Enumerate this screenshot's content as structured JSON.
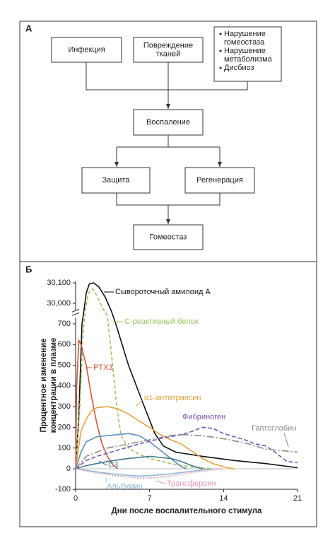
{
  "panel_a": {
    "label": "А",
    "nodes": [
      {
        "lines": [
          "Инфекция"
        ]
      },
      {
        "lines": [
          "Повреждение",
          "тканей"
        ]
      },
      {
        "items": [
          [
            "Нарушение",
            "гомеостаза"
          ],
          [
            "Нарушение",
            "метаболизма"
          ],
          [
            "Дисбиоз"
          ]
        ]
      },
      {
        "lines": [
          "Воспаление"
        ]
      },
      {
        "lines": [
          "Защита"
        ]
      },
      {
        "lines": [
          "Регенерация"
        ]
      },
      {
        "lines": [
          "Гомеостаз"
        ]
      }
    ]
  },
  "panel_b": {
    "label": "Б",
    "chart_data": {
      "type": "line",
      "ylabel": [
        "Процентное изменение",
        "концентрации в плазме"
      ],
      "xlabel": "Дни после воспалительного стимула",
      "xlim": [
        0,
        21
      ],
      "xticks": [
        0,
        7,
        14,
        21
      ],
      "ylim": [
        -100,
        30100
      ],
      "y_break": [
        750,
        29950
      ],
      "yticks": [
        -100,
        0,
        100,
        200,
        300,
        400,
        500,
        600,
        700,
        {
          "value": 30000,
          "label": "30,000"
        },
        {
          "value": 30100,
          "label": "30,100"
        }
      ],
      "series": [
        {
          "name": "Сывороточный амилоид А",
          "color": "#111111",
          "dash": "none",
          "x": [
            0,
            0.3,
            0.6,
            0.8,
            1,
            1.3,
            1.7,
            2.2,
            2.8,
            3.4,
            3.8,
            5,
            6.5,
            7.5,
            8.3,
            9.5,
            12,
            15,
            18,
            21
          ],
          "values": [
            0,
            250,
            700,
            29970,
            30050,
            30095,
            30100,
            30080,
            30030,
            29960,
            700,
            500,
            300,
            170,
            110,
            80,
            60,
            40,
            25,
            5
          ]
        },
        {
          "name": "С-реактивный белок",
          "color": "#9bc15a",
          "dash": "5,3",
          "x": [
            0,
            0.4,
            0.7,
            0.9,
            1.2,
            1.6,
            2,
            2.5,
            3,
            3.3,
            3.6,
            3.9,
            4.3,
            5,
            6,
            7,
            9,
            11,
            13
          ],
          "values": [
            0,
            300,
            650,
            29960,
            30050,
            30070,
            30040,
            29980,
            740,
            600,
            450,
            300,
            160,
            100,
            70,
            50,
            25,
            8,
            0
          ]
        },
        {
          "name": "PTX3",
          "color": "#d9533a",
          "dash": "none",
          "x": [
            0,
            0.1,
            0.3,
            0.5,
            1,
            1.5,
            2,
            2.5,
            3,
            3.5,
            4
          ],
          "values": [
            0,
            400,
            620,
            600,
            500,
            350,
            220,
            120,
            60,
            20,
            0
          ]
        },
        {
          "name": "α1-антитрипсин",
          "color": "#e9a23b",
          "dash": "none",
          "x": [
            0,
            0.5,
            1,
            1.5,
            2,
            3,
            4,
            5,
            6,
            7,
            8,
            9,
            10,
            11,
            12,
            13,
            14,
            15
          ],
          "values": [
            0,
            180,
            240,
            280,
            295,
            300,
            290,
            265,
            230,
            200,
            165,
            140,
            120,
            85,
            50,
            25,
            10,
            0
          ]
        },
        {
          "color": "#5b8fc9",
          "dash": "none",
          "x": [
            0,
            0.5,
            1,
            2,
            4,
            5,
            6,
            7,
            8,
            9,
            10,
            10.5
          ],
          "values": [
            0,
            80,
            130,
            155,
            165,
            170,
            160,
            130,
            90,
            50,
            10,
            0
          ]
        },
        {
          "name": "Фибриноген",
          "color": "#7a52b3",
          "dash": "6,3",
          "x": [
            0,
            1,
            2,
            4,
            6,
            8,
            10,
            11,
            12,
            13,
            14,
            15,
            16,
            17,
            18,
            19,
            20,
            21
          ],
          "values": [
            0,
            40,
            60,
            90,
            120,
            145,
            165,
            180,
            200,
            195,
            170,
            155,
            140,
            120,
            110,
            75,
            35,
            30
          ]
        },
        {
          "name": "Гаптоглобин",
          "color": "#8a8a8a",
          "dash": "10,3,2,3",
          "x": [
            0,
            1,
            3,
            5,
            7,
            9,
            10,
            12,
            14,
            16,
            18,
            20,
            21
          ],
          "values": [
            0,
            60,
            100,
            120,
            140,
            160,
            165,
            160,
            145,
            125,
            95,
            85,
            80
          ]
        },
        {
          "name": "C3",
          "color": "#3e7a8a",
          "dash": "none",
          "x": [
            0,
            1,
            2,
            3,
            5,
            7,
            9,
            10,
            11,
            12
          ],
          "values": [
            0,
            15,
            25,
            35,
            50,
            60,
            50,
            35,
            15,
            0
          ]
        },
        {
          "name": "Альбумин",
          "color": "#8fb7d8",
          "dash": "none",
          "x": [
            0,
            2,
            4,
            6,
            7,
            9,
            11,
            13
          ],
          "values": [
            0,
            -15,
            -28,
            -35,
            -33,
            -25,
            -12,
            0
          ]
        },
        {
          "name": "Трансферрин",
          "color": "#e39bb0",
          "dash": "2,2",
          "x": [
            0,
            2,
            4,
            6,
            7,
            9,
            11,
            13,
            14
          ],
          "values": [
            0,
            -20,
            -35,
            -45,
            -45,
            -35,
            -18,
            -5,
            0
          ]
        }
      ]
    }
  }
}
